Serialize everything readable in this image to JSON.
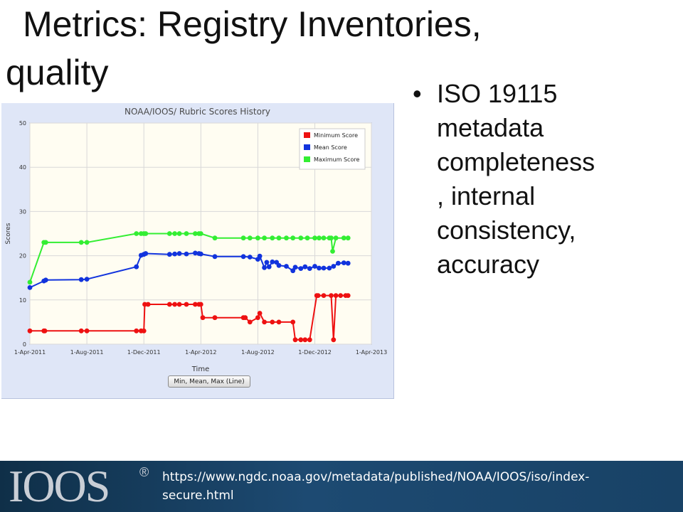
{
  "slide": {
    "title_line1": "Metrics: Registry Inventories,",
    "title_line2": "quality",
    "bullet": "ISO 19115\nmetadata\ncompleteness\n, internal\nconsistency,\naccuracy",
    "bullet_marker": "•"
  },
  "footer": {
    "logo_text": "IOOS",
    "reg_mark": "®",
    "url": "https://www.ngdc.noaa.gov/metadata/published/NOAA/IOOS/iso/index-\nsecure.html"
  },
  "chart_data": {
    "type": "line",
    "title": "NOAA/IOOS/ Rubric Scores History",
    "xlabel": "Time",
    "ylabel": "Scores",
    "ylim": [
      0,
      50
    ],
    "yticks": [
      0,
      10,
      20,
      30,
      40,
      50
    ],
    "xlim": [
      "2011-04-01",
      "2013-04-01"
    ],
    "xticks": [
      "1-Apr-2011",
      "1-Aug-2011",
      "1-Dec-2011",
      "1-Apr-2012",
      "1-Aug-2012",
      "1-Dec-2012",
      "1-Apr-2013"
    ],
    "grid": true,
    "legend_position": "top-right",
    "button_label": "Min, Mean, Max (Line)",
    "series": [
      {
        "name": "Minimum Score",
        "color": "#ee1111",
        "x": [
          "2011-04-01",
          "2011-05-01",
          "2011-05-03",
          "2011-07-20",
          "2011-08-01",
          "2011-11-15",
          "2011-11-25",
          "2011-12-01",
          "2011-12-03",
          "2011-12-10",
          "2012-01-25",
          "2012-02-05",
          "2012-02-15",
          "2012-03-01",
          "2012-03-20",
          "2012-03-28",
          "2012-04-01",
          "2012-04-05",
          "2012-05-01",
          "2012-07-01",
          "2012-07-05",
          "2012-07-15",
          "2012-08-01",
          "2012-08-05",
          "2012-08-15",
          "2012-09-01",
          "2012-09-15",
          "2012-10-15",
          "2012-10-20",
          "2012-11-01",
          "2012-11-10",
          "2012-11-20",
          "2012-12-05",
          "2012-12-08",
          "2012-12-20",
          "2013-01-05",
          "2013-01-10",
          "2013-01-15",
          "2013-01-25",
          "2013-02-05",
          "2013-02-10"
        ],
        "y": [
          3,
          3,
          3,
          3,
          3,
          3,
          3,
          3,
          9,
          9,
          9,
          9,
          9,
          9,
          9,
          9,
          9,
          6,
          6,
          6,
          6,
          5,
          6,
          7,
          5,
          5,
          5,
          5,
          1,
          1,
          1,
          1,
          11,
          11,
          11,
          11,
          1,
          11,
          11,
          11,
          11
        ]
      },
      {
        "name": "Mean Score",
        "color": "#1133dd",
        "x": [
          "2011-04-01",
          "2011-05-01",
          "2011-05-05",
          "2011-07-20",
          "2011-08-01",
          "2011-11-15",
          "2011-11-25",
          "2011-12-01",
          "2011-12-05",
          "2012-01-25",
          "2012-02-05",
          "2012-02-15",
          "2012-03-01",
          "2012-03-20",
          "2012-03-28",
          "2012-04-01",
          "2012-05-01",
          "2012-07-01",
          "2012-07-15",
          "2012-08-01",
          "2012-08-05",
          "2012-08-15",
          "2012-08-20",
          "2012-08-25",
          "2012-09-01",
          "2012-09-10",
          "2012-09-15",
          "2012-10-01",
          "2012-10-15",
          "2012-10-20",
          "2012-11-01",
          "2012-11-10",
          "2012-11-20",
          "2012-12-01",
          "2012-12-10",
          "2012-12-20",
          "2013-01-01",
          "2013-01-10",
          "2013-01-20",
          "2013-02-01",
          "2013-02-10"
        ],
        "y": [
          12.8,
          14.3,
          14.5,
          14.6,
          14.7,
          17.5,
          20.1,
          20.3,
          20.5,
          20.3,
          20.4,
          20.5,
          20.4,
          20.6,
          20.5,
          20.4,
          19.8,
          19.8,
          19.7,
          19.2,
          19.9,
          17.3,
          18.5,
          17.5,
          18.6,
          18.5,
          17.8,
          17.6,
          16.6,
          17.4,
          17.1,
          17.5,
          17.1,
          17.6,
          17.2,
          17.2,
          17.2,
          17.6,
          18.3,
          18.4,
          18.3
        ]
      },
      {
        "name": "Maximum Score",
        "color": "#33ee33",
        "x": [
          "2011-04-01",
          "2011-05-01",
          "2011-05-05",
          "2011-07-20",
          "2011-08-01",
          "2011-11-15",
          "2011-11-25",
          "2011-12-01",
          "2011-12-05",
          "2012-01-25",
          "2012-02-05",
          "2012-02-15",
          "2012-03-01",
          "2012-03-20",
          "2012-03-28",
          "2012-04-01",
          "2012-05-01",
          "2012-07-01",
          "2012-07-15",
          "2012-08-01",
          "2012-08-15",
          "2012-09-01",
          "2012-09-15",
          "2012-10-01",
          "2012-10-15",
          "2012-11-01",
          "2012-11-15",
          "2012-12-01",
          "2012-12-10",
          "2012-12-20",
          "2013-01-01",
          "2013-01-05",
          "2013-01-08",
          "2013-01-15",
          "2013-02-01",
          "2013-02-10"
        ],
        "y": [
          14,
          23,
          23,
          23,
          23,
          25,
          25,
          25,
          25,
          25,
          25,
          25,
          25,
          25,
          25,
          25,
          24,
          24,
          24,
          24,
          24,
          24,
          24,
          24,
          24,
          24,
          24,
          24,
          24,
          24,
          24,
          24,
          21,
          24,
          24,
          24
        ]
      }
    ]
  }
}
